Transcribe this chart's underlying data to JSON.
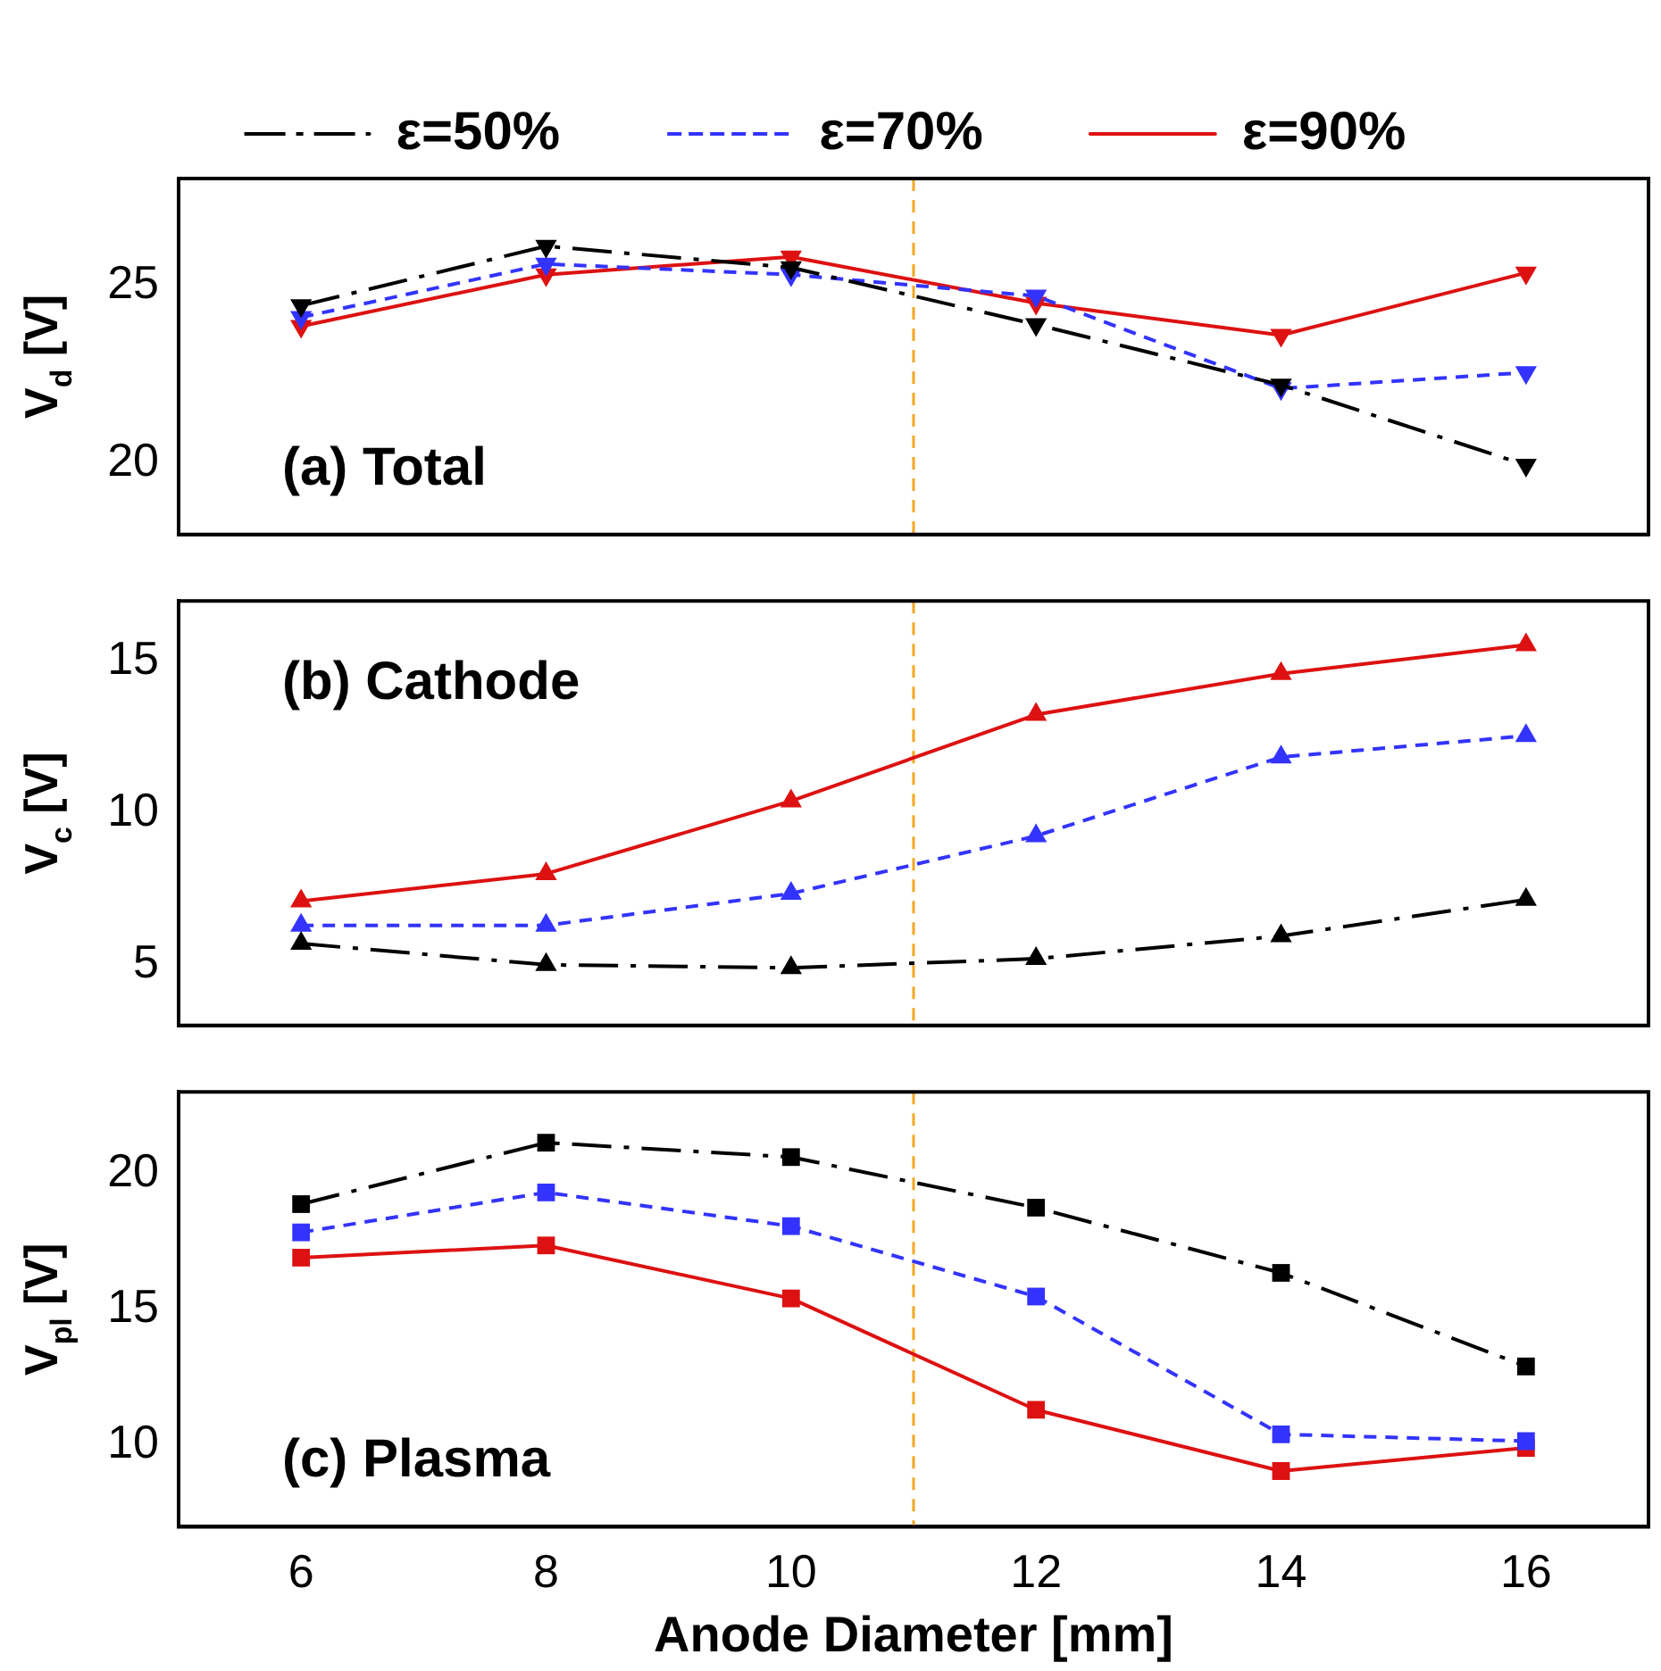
{
  "chart_data": [
    {
      "type": "line",
      "ylabel": "V$_{d}$ [V]",
      "annotations": [
        "(a) Total"
      ],
      "x": [
        6,
        8,
        10,
        12,
        14,
        16
      ],
      "xlim": [
        5,
        17
      ],
      "xticks": [
        6,
        8,
        10,
        12,
        14,
        16
      ],
      "ylim": [
        18,
        28
      ],
      "yticks": [
        20,
        25
      ],
      "tick_labels": "y",
      "grid": false,
      "legend": "top",
      "marker": "triangle",
      "ref_lines": [
        {
          "axis": "x",
          "value": 11,
          "color": "#f5a623",
          "line_style": "dashed"
        }
      ],
      "series": [
        {
          "name": "ε=50%",
          "color": "#000000",
          "line_style": "dashdot",
          "values": [
            24.43,
            26.1,
            25.5,
            23.9,
            22.2,
            19.95
          ]
        },
        {
          "name": "ε=70%",
          "color": "#3333ff",
          "line_style": "dashed",
          "values": [
            24.1,
            25.6,
            25.3,
            24.7,
            22.1,
            22.55
          ]
        },
        {
          "name": "ε=90%",
          "color": "#dd1111",
          "line_style": "solid",
          "values": [
            23.85,
            25.3,
            25.8,
            24.5,
            23.6,
            25.35
          ]
        }
      ]
    },
    {
      "type": "line",
      "ylabel": "V$_{c}$ [V]",
      "annotations": [
        "(b) Cathode"
      ],
      "x": [
        6,
        8,
        10,
        12,
        14,
        16
      ],
      "xlim": [
        5,
        17
      ],
      "xticks": [
        6,
        8,
        10,
        12,
        14,
        16
      ],
      "ylim": [
        3,
        17
      ],
      "yticks": [
        5,
        10,
        15
      ],
      "tick_labels": "y",
      "grid": false,
      "marker": "triangle",
      "ref_lines": [
        {
          "axis": "x",
          "value": 11,
          "color": "#f5a623",
          "line_style": "dashed"
        }
      ],
      "series": [
        {
          "color": "#000000",
          "line_style": "dashdot",
          "values": [
            5.7,
            5.0,
            4.9,
            5.2,
            5.95,
            7.15
          ]
        },
        {
          "color": "#3333ff",
          "line_style": "dashed",
          "values": [
            6.3,
            6.3,
            7.35,
            9.25,
            11.85,
            12.55
          ]
        },
        {
          "color": "#dd1111",
          "line_style": "solid",
          "values": [
            7.1,
            8.0,
            10.4,
            13.25,
            14.6,
            15.55
          ]
        }
      ]
    },
    {
      "type": "line",
      "ylabel": "V$_{pl}$ [V]",
      "xlabel": "Anode Diameter [mm]",
      "annotations": [
        "(c) Plasma"
      ],
      "x": [
        6,
        8,
        10,
        12,
        14,
        16
      ],
      "xlim": [
        5,
        17
      ],
      "xticks": [
        6,
        8,
        10,
        12,
        14,
        16
      ],
      "ylim": [
        7,
        23
      ],
      "yticks": [
        10,
        15,
        20
      ],
      "grid": false,
      "marker": "square",
      "ref_lines": [
        {
          "axis": "x",
          "value": 11,
          "color": "#f5a623",
          "line_style": "dashed"
        }
      ],
      "series": [
        {
          "color": "#000000",
          "line_style": "dashdot",
          "values": [
            18.87,
            21.13,
            20.6,
            18.74,
            16.34,
            12.9
          ]
        },
        {
          "color": "#3333ff",
          "line_style": "dashed",
          "values": [
            17.83,
            19.3,
            18.06,
            15.47,
            10.4,
            10.15
          ]
        },
        {
          "color": "#dd1111",
          "line_style": "solid",
          "values": [
            16.9,
            17.35,
            15.4,
            11.3,
            9.05,
            9.9
          ]
        }
      ]
    }
  ]
}
